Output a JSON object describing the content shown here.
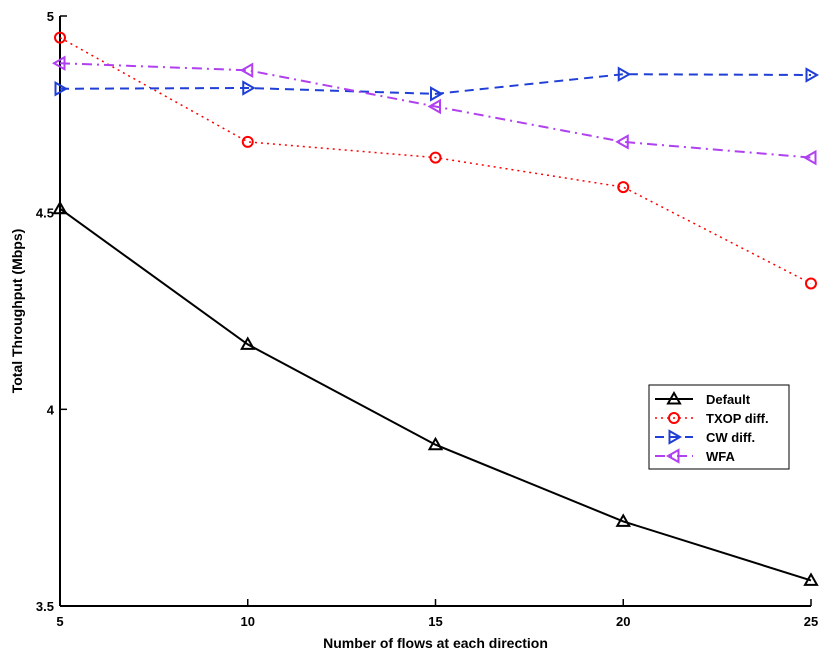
{
  "chart_data": {
    "type": "line",
    "title": "",
    "xlabel": "Number of flows at each direction",
    "ylabel": "Total Throughput (Mbps)",
    "x": [
      5,
      10,
      15,
      20,
      25
    ],
    "xlim": [
      5,
      25
    ],
    "ylim": [
      3.5,
      5
    ],
    "xticks": [
      5,
      10,
      15,
      20,
      25
    ],
    "xtick_labels": [
      "5",
      "10",
      "15",
      "20",
      "25"
    ],
    "yticks": [
      3.5,
      4,
      4.5,
      5
    ],
    "ytick_labels": [
      "3.5",
      "4",
      "4.5",
      "5"
    ],
    "grid": false,
    "legend_position": "lower-right",
    "series": [
      {
        "name": "Default",
        "values": [
          4.51,
          4.165,
          3.91,
          3.715,
          3.565
        ],
        "color": "#000000",
        "dash": "solid",
        "marker": "triangle-up"
      },
      {
        "name": "TXOP diff.",
        "values": [
          4.945,
          4.68,
          4.64,
          4.565,
          4.32
        ],
        "color": "#ff0000",
        "dash": "dotted",
        "marker": "circle"
      },
      {
        "name": "CW diff.",
        "values": [
          4.815,
          4.817,
          4.802,
          4.852,
          4.85
        ],
        "color": "#1f3fd6",
        "dash": "dashed",
        "marker": "triangle-right"
      },
      {
        "name": "WFA",
        "values": [
          4.88,
          4.862,
          4.77,
          4.68,
          4.64
        ],
        "color": "#b040f0",
        "dash": "dashdot",
        "marker": "triangle-left"
      }
    ]
  }
}
